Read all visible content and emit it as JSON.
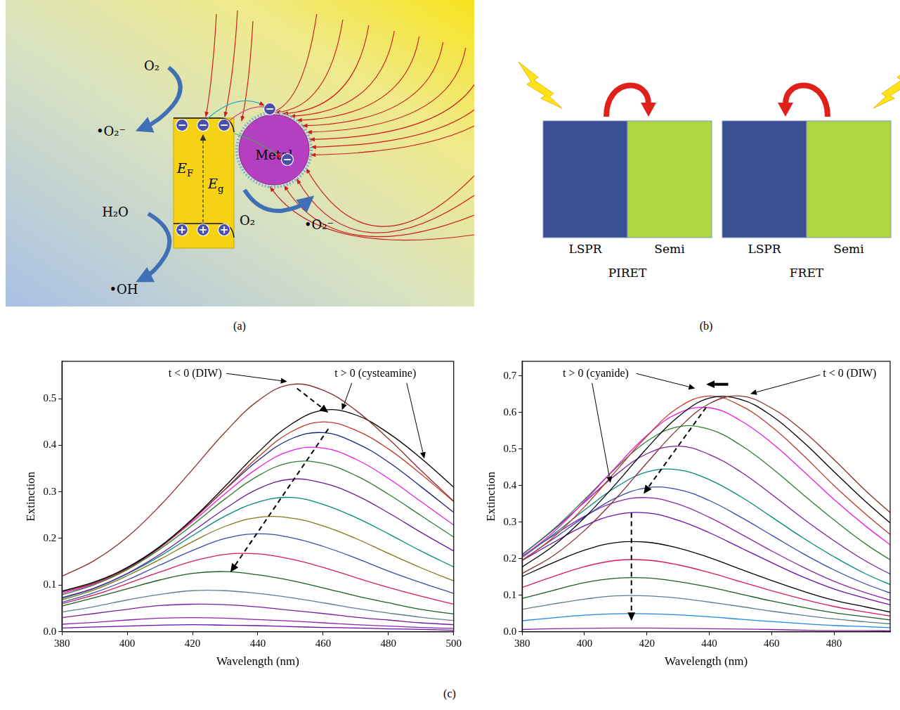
{
  "diagram_a": {
    "label": "(a)",
    "metal": "Metal",
    "fermi_level": {
      "symbol": "E",
      "subscript": "F"
    },
    "band_gap": {
      "symbol": "E",
      "subscript": "g"
    },
    "electron": "−",
    "hole": "+",
    "reactions": [
      {
        "from": "O₂",
        "to": "•O₂⁻"
      },
      {
        "from": "H₂O",
        "to": "•OH"
      },
      {
        "from": "O₂",
        "to": "•O₂⁻"
      }
    ]
  },
  "diagram_b": {
    "label": "(b)",
    "panels": [
      {
        "boxes": [
          "LSPR",
          "Semi"
        ],
        "transfer_from": "LSPR",
        "caption": "PIRET"
      },
      {
        "boxes": [
          "LSPR",
          "Semi"
        ],
        "transfer_from": "Semi",
        "caption": "FRET"
      }
    ]
  },
  "chart_panel_label": "(c)",
  "chart_data": [
    {
      "type": "line",
      "x_label": "Wavelength (nm)",
      "y_label": "Extinction",
      "x": [
        380,
        390,
        400,
        410,
        420,
        430,
        440,
        450,
        460,
        470,
        480,
        490,
        500
      ],
      "xlim": [
        380,
        500
      ],
      "xticks": [
        380,
        400,
        420,
        440,
        460,
        480,
        500
      ],
      "ylim": [
        0,
        0.58
      ],
      "yticks": [
        {
          "value": 0,
          "label": "0.0"
        },
        0.1,
        0.2,
        0.3,
        0.4,
        0.5
      ],
      "grid": false,
      "annotations": [
        "t < 0 (DIW)",
        "t > 0 (cysteamine)"
      ],
      "series": [
        {
          "color": "#8b2e2e",
          "values": [
            0.119,
            0.153,
            0.203,
            0.27,
            0.348,
            0.428,
            0.495,
            0.53,
            0.518,
            0.475,
            0.414,
            0.346,
            0.28
          ]
        },
        {
          "color": "#000000",
          "values": [
            0.087,
            0.107,
            0.137,
            0.182,
            0.242,
            0.312,
            0.384,
            0.444,
            0.475,
            0.465,
            0.426,
            0.372,
            0.31
          ]
        },
        {
          "color": "#c0392b",
          "values": [
            0.086,
            0.104,
            0.135,
            0.18,
            0.239,
            0.306,
            0.374,
            0.428,
            0.45,
            0.432,
            0.392,
            0.338,
            0.279
          ]
        },
        {
          "color": "#1a237e",
          "values": [
            0.085,
            0.105,
            0.138,
            0.183,
            0.241,
            0.305,
            0.367,
            0.413,
            0.427,
            0.405,
            0.364,
            0.311,
            0.256
          ]
        },
        {
          "color": "#e91ee0",
          "values": [
            0.082,
            0.103,
            0.136,
            0.181,
            0.236,
            0.296,
            0.351,
            0.388,
            0.394,
            0.37,
            0.329,
            0.279,
            0.229
          ]
        },
        {
          "color": "#2e7d32",
          "values": [
            0.079,
            0.101,
            0.133,
            0.177,
            0.229,
            0.285,
            0.334,
            0.363,
            0.361,
            0.335,
            0.295,
            0.249,
            0.203
          ]
        },
        {
          "color": "#6a1b9a",
          "values": [
            0.073,
            0.094,
            0.125,
            0.166,
            0.215,
            0.264,
            0.306,
            0.327,
            0.319,
            0.293,
            0.255,
            0.213,
            0.173
          ]
        },
        {
          "color": "#00897b",
          "values": [
            0.071,
            0.093,
            0.124,
            0.162,
            0.206,
            0.248,
            0.278,
            0.288,
            0.273,
            0.245,
            0.21,
            0.173,
            0.139
          ]
        },
        {
          "color": "#827717",
          "values": [
            0.068,
            0.09,
            0.12,
            0.155,
            0.193,
            0.226,
            0.245,
            0.244,
            0.227,
            0.2,
            0.168,
            0.137,
            0.109
          ]
        },
        {
          "color": "#3949ab",
          "values": [
            0.063,
            0.084,
            0.111,
            0.143,
            0.174,
            0.2,
            0.21,
            0.202,
            0.183,
            0.158,
            0.13,
            0.105,
            0.082
          ]
        },
        {
          "color": "#d81b60",
          "values": [
            0.06,
            0.079,
            0.103,
            0.128,
            0.151,
            0.166,
            0.167,
            0.156,
            0.138,
            0.116,
            0.095,
            0.076,
            0.059
          ]
        },
        {
          "color": "#1b5e20",
          "values": [
            0.055,
            0.073,
            0.092,
            0.111,
            0.125,
            0.129,
            0.122,
            0.11,
            0.094,
            0.077,
            0.062,
            0.048,
            0.038
          ]
        },
        {
          "color": "#607d8b",
          "values": [
            0.042,
            0.054,
            0.068,
            0.08,
            0.088,
            0.088,
            0.082,
            0.073,
            0.062,
            0.05,
            0.04,
            0.031,
            0.024
          ]
        },
        {
          "color": "#7b1fa2",
          "values": [
            0.03,
            0.039,
            0.048,
            0.056,
            0.059,
            0.058,
            0.053,
            0.046,
            0.039,
            0.031,
            0.025,
            0.019,
            0.015
          ]
        },
        {
          "color": "#8e24aa",
          "values": [
            0.016,
            0.02,
            0.025,
            0.029,
            0.03,
            0.029,
            0.026,
            0.023,
            0.019,
            0.015,
            0.012,
            0.009,
            0.007
          ]
        },
        {
          "color": "#6a0dad",
          "values": [
            0.008,
            0.01,
            0.012,
            0.014,
            0.015,
            0.014,
            0.013,
            0.011,
            0.009,
            0.008,
            0.006,
            0.005,
            0.003
          ]
        }
      ]
    },
    {
      "type": "line",
      "x_label": "Wavelength (nm)",
      "y_label": "Extinction",
      "x": [
        380,
        390,
        400,
        410,
        420,
        430,
        440,
        450,
        460,
        470,
        480,
        490,
        500
      ],
      "xlim": [
        380,
        498
      ],
      "xticks": [
        380,
        400,
        420,
        440,
        460,
        480
      ],
      "ylim": [
        0,
        0.74
      ],
      "yticks": [
        {
          "value": 0,
          "label": "0.0"
        },
        0.1,
        0.2,
        0.3,
        0.4,
        0.5,
        0.6,
        0.7
      ],
      "grid": false,
      "annotations": [
        "t > 0 (cyanide)",
        "t < 0 (DIW)"
      ],
      "series": [
        {
          "color": "#8b2e2e",
          "values": [
            0.159,
            0.208,
            0.277,
            0.364,
            0.462,
            0.555,
            0.624,
            0.645,
            0.612,
            0.55,
            0.471,
            0.387,
            0.311
          ]
        },
        {
          "color": "#000000",
          "values": [
            0.177,
            0.235,
            0.312,
            0.404,
            0.502,
            0.588,
            0.639,
            0.636,
            0.591,
            0.52,
            0.438,
            0.357,
            0.283
          ]
        },
        {
          "color": "#c0392b",
          "values": [
            0.194,
            0.258,
            0.342,
            0.439,
            0.535,
            0.613,
            0.645,
            0.619,
            0.561,
            0.484,
            0.4,
            0.323,
            0.252
          ]
        },
        {
          "color": "#e91ee0",
          "values": [
            0.205,
            0.272,
            0.357,
            0.45,
            0.537,
            0.598,
            0.613,
            0.578,
            0.517,
            0.441,
            0.362,
            0.29,
            0.225
          ]
        },
        {
          "color": "#2e7d32",
          "values": [
            0.211,
            0.28,
            0.362,
            0.447,
            0.521,
            0.561,
            0.554,
            0.511,
            0.448,
            0.376,
            0.306,
            0.241,
            0.186
          ]
        },
        {
          "color": "#7b1fa2",
          "values": [
            0.211,
            0.278,
            0.354,
            0.429,
            0.487,
            0.508,
            0.485,
            0.438,
            0.376,
            0.31,
            0.249,
            0.194,
            0.149
          ]
        },
        {
          "color": "#00897b",
          "values": [
            0.203,
            0.266,
            0.333,
            0.395,
            0.437,
            0.443,
            0.416,
            0.37,
            0.314,
            0.257,
            0.205,
            0.159,
            0.122
          ]
        },
        {
          "color": "#3949ab",
          "values": [
            0.196,
            0.254,
            0.314,
            0.366,
            0.394,
            0.389,
            0.359,
            0.314,
            0.264,
            0.214,
            0.169,
            0.131,
            0.1
          ]
        },
        {
          "color": "#8e24aa",
          "values": [
            0.207,
            0.263,
            0.316,
            0.355,
            0.367,
            0.349,
            0.313,
            0.268,
            0.221,
            0.177,
            0.138,
            0.107,
            0.081
          ]
        },
        {
          "color": "#6a0dad",
          "values": [
            0.195,
            0.244,
            0.29,
            0.32,
            0.325,
            0.305,
            0.271,
            0.23,
            0.189,
            0.15,
            0.117,
            0.092,
            0.069
          ]
        },
        {
          "color": "#000000",
          "values": [
            0.151,
            0.189,
            0.223,
            0.244,
            0.245,
            0.229,
            0.203,
            0.171,
            0.14,
            0.111,
            0.086,
            0.068,
            0.05
          ]
        },
        {
          "color": "#d81b60",
          "values": [
            0.121,
            0.151,
            0.178,
            0.195,
            0.196,
            0.183,
            0.162,
            0.137,
            0.112,
            0.089,
            0.069,
            0.054,
            0.04
          ]
        },
        {
          "color": "#1b5e20",
          "values": [
            0.091,
            0.113,
            0.134,
            0.146,
            0.147,
            0.137,
            0.122,
            0.103,
            0.084,
            0.067,
            0.052,
            0.041,
            0.03
          ]
        },
        {
          "color": "#607d8b",
          "values": [
            0.061,
            0.076,
            0.089,
            0.098,
            0.098,
            0.092,
            0.081,
            0.069,
            0.056,
            0.045,
            0.035,
            0.027,
            0.02
          ]
        },
        {
          "color": "#1e88e5",
          "values": [
            0.03,
            0.038,
            0.045,
            0.049,
            0.049,
            0.046,
            0.041,
            0.034,
            0.028,
            0.022,
            0.017,
            0.014,
            0.01
          ]
        },
        {
          "color": "#8e24aa",
          "values": [
            0.006,
            0.008,
            0.009,
            0.01,
            0.01,
            0.009,
            0.008,
            0.007,
            0.006,
            0.004,
            0.003,
            0.003,
            0.002
          ]
        }
      ]
    }
  ]
}
